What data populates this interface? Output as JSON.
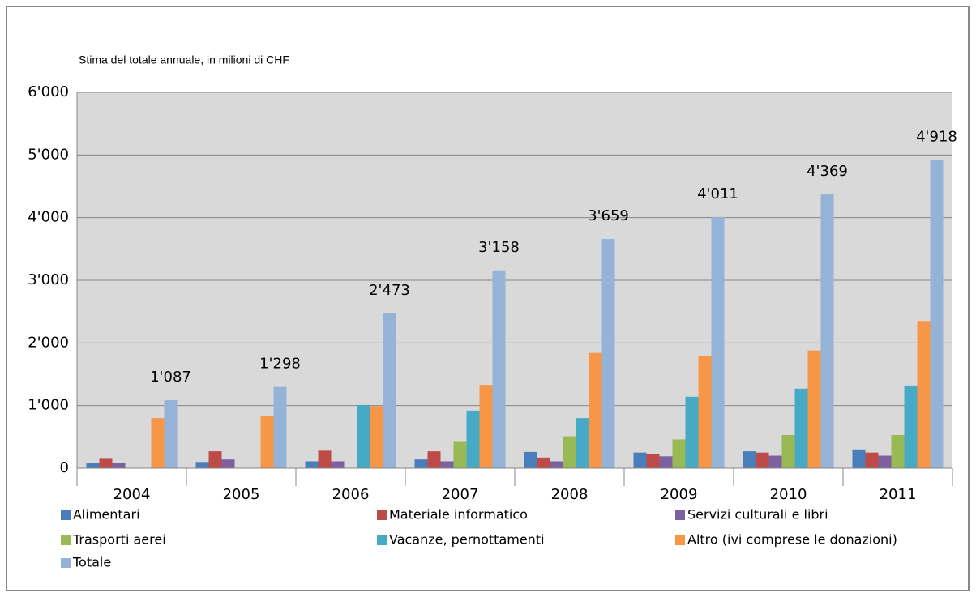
{
  "chart_data": {
    "type": "bar",
    "title": "Stima del totale annuale, in milioni di CHF",
    "categories": [
      "2004",
      "2005",
      "2006",
      "2007",
      "2008",
      "2009",
      "2010",
      "2011"
    ],
    "series": [
      {
        "name": "Alimentari",
        "color": "#4a7ebb",
        "values": [
          90,
          100,
          110,
          140,
          260,
          250,
          270,
          300
        ]
      },
      {
        "name": "Materiale informatico",
        "color": "#be4b48",
        "values": [
          150,
          270,
          280,
          270,
          170,
          220,
          250,
          250
        ]
      },
      {
        "name": "Servizi culturali e libri",
        "color": "#7d60a0",
        "values": [
          90,
          140,
          110,
          110,
          110,
          190,
          200,
          200
        ]
      },
      {
        "name": "Trasporti aerei",
        "color": "#98b954",
        "values": [
          null,
          null,
          null,
          420,
          510,
          460,
          530,
          530
        ]
      },
      {
        "name": "Vacanze, pernottamenti",
        "color": "#46aac5",
        "values": [
          null,
          null,
          1010,
          920,
          800,
          1140,
          1270,
          1320
        ]
      },
      {
        "name": "Altro (ivi comprese le donazioni)",
        "color": "#f79646",
        "values": [
          800,
          830,
          990,
          1330,
          1840,
          1790,
          1880,
          2350
        ]
      },
      {
        "name": "Totale",
        "color": "#95b3d7",
        "values": [
          1087,
          1298,
          2473,
          3158,
          3659,
          4011,
          4369,
          4918
        ],
        "value_labels": [
          "1'087",
          "1'298",
          "2'473",
          "3'158",
          "3'659",
          "4'011",
          "4'369",
          "4'918"
        ]
      }
    ],
    "ylim": [
      0,
      6000
    ],
    "yticks": [
      0,
      {
        "value": 1000,
        "label": "1'000"
      },
      {
        "value": 2000,
        "label": "2'000"
      },
      {
        "value": 3000,
        "label": "3'000"
      },
      {
        "value": 4000,
        "label": "4'000"
      },
      {
        "value": 5000,
        "label": "5'000"
      },
      {
        "value": 6000,
        "label": "6'000"
      }
    ],
    "grid": true
  }
}
